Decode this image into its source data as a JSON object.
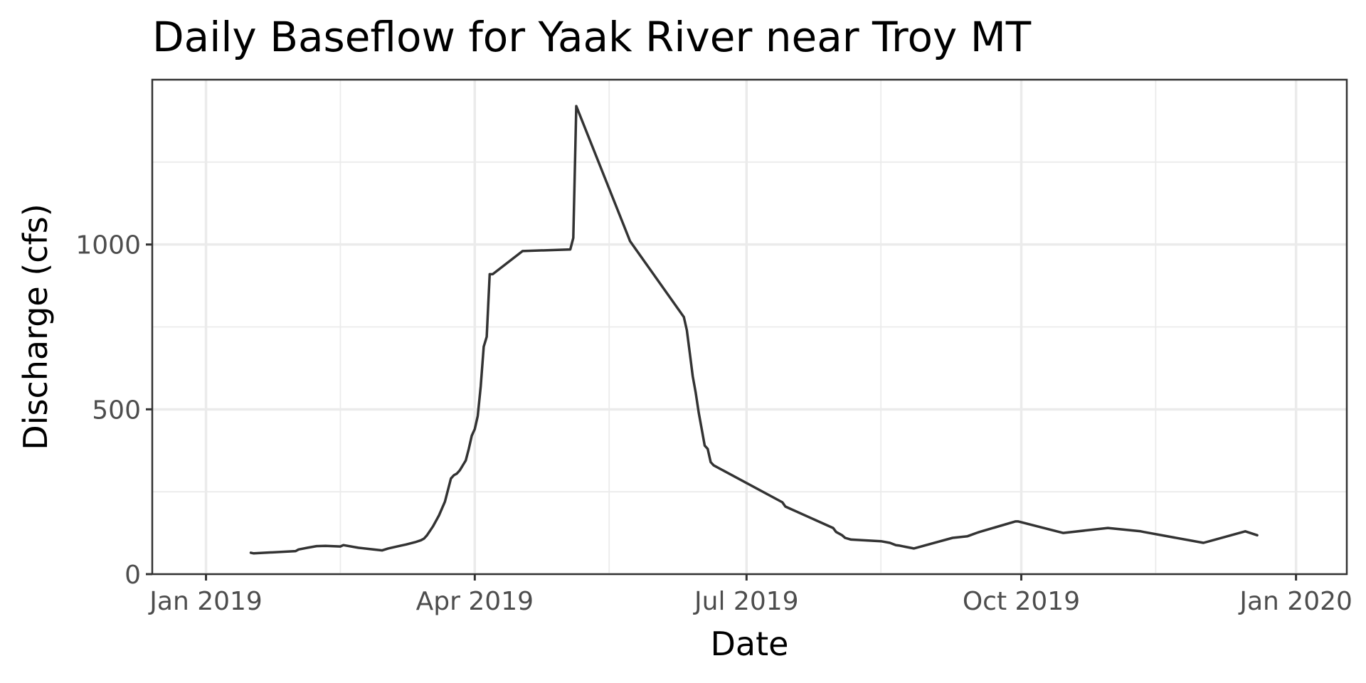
{
  "chart_data": {
    "type": "line",
    "title": "Daily Baseflow for Yaak River near Troy MT",
    "xlabel": "Date",
    "ylabel": "Discharge (cfs)",
    "x_type": "date",
    "xlim": [
      "2018-12-14",
      "2020-01-18"
    ],
    "ylim": [
      0,
      1500
    ],
    "x_ticks": [
      {
        "value": "2019-01-01",
        "label": "Jan 2019"
      },
      {
        "value": "2019-04-01",
        "label": "Apr 2019"
      },
      {
        "value": "2019-07-01",
        "label": "Jul 2019"
      },
      {
        "value": "2019-10-01",
        "label": "Oct 2019"
      },
      {
        "value": "2020-01-01",
        "label": "Jan 2020"
      }
    ],
    "x_minor_ticks": [
      "2019-02-15",
      "2019-05-16",
      "2019-08-15",
      "2019-11-15"
    ],
    "y_ticks": [
      {
        "value": 0,
        "label": "0"
      },
      {
        "value": 500,
        "label": "500"
      },
      {
        "value": 1000,
        "label": "1000"
      }
    ],
    "y_minor_ticks": [
      250,
      750,
      1250
    ],
    "grid": true,
    "legend": "none",
    "colors": {
      "line": "#333333",
      "grid": "#ebebeb",
      "panel_border": "#333333",
      "tick_label": "#4d4d4d"
    },
    "series": [
      {
        "x": [
          "2019-01-16",
          "2019-01-17",
          "2019-01-31",
          "2019-02-01",
          "2019-02-04",
          "2019-02-07",
          "2019-02-10",
          "2019-02-15",
          "2019-02-16",
          "2019-02-21",
          "2019-02-26",
          "2019-03-01",
          "2019-03-03",
          "2019-03-06",
          "2019-03-09",
          "2019-03-12",
          "2019-03-14",
          "2019-03-15",
          "2019-03-16",
          "2019-03-18",
          "2019-03-20",
          "2019-03-22",
          "2019-03-24",
          "2019-03-25",
          "2019-03-26",
          "2019-03-27",
          "2019-03-29",
          "2019-03-30",
          "2019-03-31",
          "2019-04-01",
          "2019-04-02",
          "2019-04-03",
          "2019-04-04",
          "2019-04-05",
          "2019-04-06",
          "2019-04-07",
          "2019-04-17",
          "2019-05-03",
          "2019-05-04",
          "2019-05-05",
          "2019-05-23",
          "2019-06-10",
          "2019-06-11",
          "2019-06-12",
          "2019-06-13",
          "2019-06-14",
          "2019-06-15",
          "2019-06-16",
          "2019-06-17",
          "2019-06-18",
          "2019-06-19",
          "2019-06-20",
          "2019-07-13",
          "2019-07-14",
          "2019-07-30",
          "2019-07-31",
          "2019-08-02",
          "2019-08-03",
          "2019-08-05",
          "2019-08-15",
          "2019-08-18",
          "2019-08-20",
          "2019-08-21",
          "2019-08-22",
          "2019-08-26",
          "2019-09-08",
          "2019-09-13",
          "2019-09-16",
          "2019-09-17",
          "2019-09-29",
          "2019-09-30",
          "2019-10-15",
          "2019-10-30",
          "2019-11-10",
          "2019-11-11",
          "2019-12-01",
          "2019-12-15",
          "2019-12-19"
        ],
        "y": [
          65,
          63,
          70,
          75,
          80,
          85,
          86,
          84,
          88,
          80,
          75,
          72,
          78,
          84,
          90,
          97,
          103,
          108,
          118,
          145,
          178,
          220,
          290,
          300,
          305,
          315,
          345,
          380,
          420,
          440,
          480,
          570,
          690,
          720,
          910,
          910,
          980,
          985,
          1020,
          1420,
          1010,
          780,
          740,
          670,
          600,
          550,
          490,
          440,
          390,
          380,
          340,
          330,
          218,
          205,
          140,
          128,
          118,
          110,
          105,
          100,
          95,
          88,
          87,
          85,
          78,
          110,
          115,
          125,
          128,
          160,
          160,
          125,
          140,
          130,
          128,
          95,
          130,
          118
        ],
        "line_values_unlabeled": true
      }
    ]
  }
}
